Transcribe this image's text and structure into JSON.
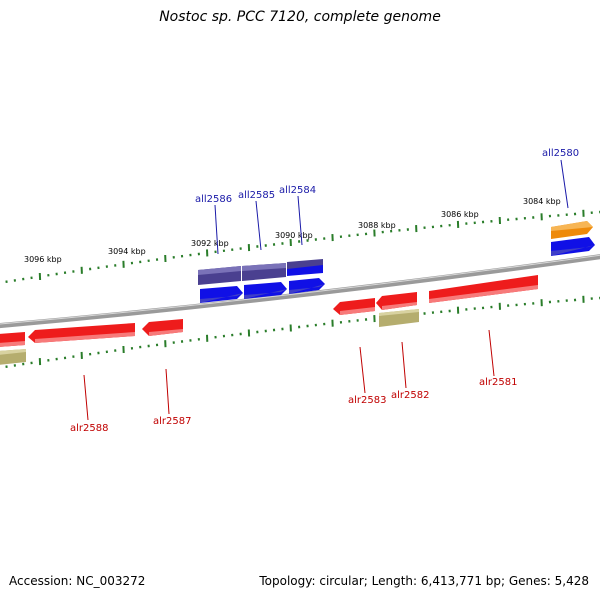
{
  "title": "Nostoc sp. PCC 7120, complete genome",
  "footer": {
    "accession": "Accession: NC_003272",
    "stats": "Topology: circular; Length: 6,413,771 bp; Genes: 5,428"
  },
  "colors": {
    "backbone": "#8a8a8a",
    "tick": "#2a7d2a",
    "forward_label": "#1a1aa8",
    "reverse_label": "#c00000",
    "reverse_gene": "#ee1c1c",
    "forward_gene": "#1010e6",
    "forward_gene_dark": "#4a4090",
    "pseudo_gene": "#b5ad6e",
    "highlight_gene": "#ee8a0a"
  },
  "scale_labels": [
    "3084 kbp",
    "3086 kbp",
    "3088 kbp",
    "3090 kbp",
    "3092 kbp",
    "3094 kbp",
    "3096 kbp"
  ],
  "forward_gene_labels": [
    "all2580",
    "all2584",
    "all2585",
    "all2586"
  ],
  "reverse_gene_labels": [
    "alr2581",
    "alr2582",
    "alr2583",
    "alr2587",
    "alr2588"
  ]
}
